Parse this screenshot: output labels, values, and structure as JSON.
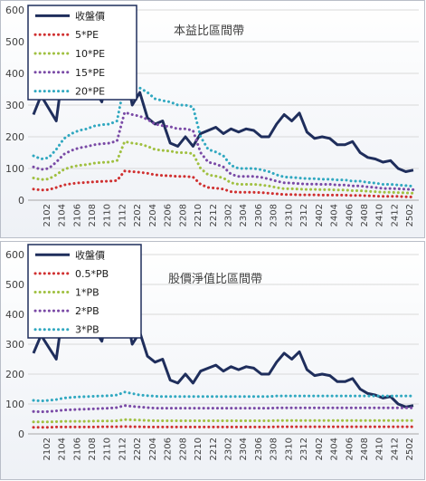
{
  "chart_data": [
    {
      "type": "line",
      "title": "本益比區間帶",
      "xlabel": "",
      "ylabel": "",
      "ylim": [
        0,
        600
      ],
      "yticks": [
        "0",
        "100",
        "200",
        "300",
        "400",
        "500",
        "600"
      ],
      "x_tick_labels": [
        "2102",
        "2104",
        "2106",
        "2108",
        "2110",
        "2112",
        "2202",
        "2204",
        "2206",
        "2208",
        "2210",
        "2212",
        "2302",
        "2304",
        "2306",
        "2308",
        "2310",
        "2312",
        "2402",
        "2404",
        "2406",
        "2408",
        "2410",
        "2412",
        "2502"
      ],
      "grid": true,
      "legend_position": "top-left",
      "series": [
        {
          "name": "收盤價",
          "color": "#1f2e5c",
          "style": "solid",
          "values": [
            270,
            330,
            290,
            250,
            430,
            420,
            385,
            400,
            350,
            310,
            430,
            450,
            430,
            300,
            340,
            260,
            240,
            250,
            180,
            170,
            200,
            170,
            210,
            220,
            230,
            210,
            225,
            215,
            225,
            220,
            200,
            200,
            240,
            270,
            250,
            275,
            215,
            195,
            200,
            195,
            175,
            175,
            185,
            150,
            135,
            130,
            120,
            125,
            100,
            90,
            95
          ]
        },
        {
          "name": "5*PE",
          "color": "#d03030",
          "style": "dotted",
          "values": [
            35,
            32,
            33,
            40,
            48,
            52,
            55,
            56,
            58,
            59,
            60,
            62,
            92,
            90,
            88,
            85,
            80,
            78,
            77,
            75,
            75,
            73,
            50,
            40,
            38,
            35,
            27,
            25,
            25,
            25,
            24,
            22,
            20,
            18,
            18,
            17,
            17,
            17,
            16,
            16,
            16,
            16,
            15,
            15,
            14,
            13,
            12,
            12,
            12,
            11,
            10
          ]
        },
        {
          "name": "10*PE",
          "color": "#a0c040",
          "style": "dotted",
          "values": [
            70,
            65,
            67,
            80,
            97,
            105,
            110,
            112,
            117,
            119,
            120,
            125,
            185,
            180,
            177,
            170,
            160,
            157,
            155,
            150,
            150,
            147,
            100,
            80,
            76,
            70,
            55,
            50,
            50,
            50,
            48,
            45,
            40,
            36,
            36,
            35,
            34,
            34,
            33,
            33,
            32,
            32,
            30,
            30,
            28,
            27,
            25,
            25,
            24,
            23,
            22
          ]
        },
        {
          "name": "15*PE",
          "color": "#7a4aa6",
          "style": "dotted",
          "values": [
            105,
            97,
            100,
            120,
            145,
            157,
            165,
            169,
            175,
            178,
            180,
            187,
            277,
            270,
            265,
            255,
            240,
            235,
            232,
            225,
            225,
            220,
            150,
            120,
            114,
            105,
            82,
            75,
            75,
            75,
            72,
            67,
            60,
            55,
            54,
            52,
            51,
            51,
            50,
            50,
            48,
            48,
            45,
            45,
            42,
            40,
            37,
            37,
            36,
            35,
            33
          ]
        },
        {
          "name": "20*PE",
          "color": "#30a8c0",
          "style": "dotted",
          "values": [
            140,
            130,
            134,
            160,
            194,
            210,
            220,
            225,
            234,
            238,
            240,
            250,
            370,
            360,
            354,
            340,
            320,
            314,
            310,
            300,
            300,
            294,
            200,
            160,
            152,
            140,
            110,
            100,
            100,
            100,
            96,
            90,
            80,
            73,
            72,
            70,
            68,
            68,
            66,
            66,
            64,
            64,
            60,
            60,
            56,
            54,
            50,
            50,
            48,
            46,
            44
          ]
        }
      ]
    },
    {
      "type": "line",
      "title": "股價淨值比區間帶",
      "xlabel": "",
      "ylabel": "",
      "ylim": [
        0,
        600
      ],
      "yticks": [
        "0",
        "100",
        "200",
        "300",
        "400",
        "500",
        "600"
      ],
      "x_tick_labels": [
        "2102",
        "2104",
        "2106",
        "2108",
        "2110",
        "2112",
        "2202",
        "2204",
        "2206",
        "2208",
        "2210",
        "2212",
        "2302",
        "2304",
        "2306",
        "2308",
        "2310",
        "2312",
        "2402",
        "2404",
        "2406",
        "2408",
        "2410",
        "2412",
        "2502"
      ],
      "grid": true,
      "legend_position": "top-left",
      "series": [
        {
          "name": "收盤價",
          "color": "#1f2e5c",
          "style": "solid",
          "values": [
            270,
            330,
            290,
            250,
            430,
            420,
            385,
            400,
            350,
            310,
            430,
            450,
            430,
            300,
            340,
            260,
            240,
            250,
            180,
            170,
            200,
            170,
            210,
            220,
            230,
            210,
            225,
            215,
            225,
            220,
            200,
            200,
            240,
            270,
            250,
            275,
            215,
            195,
            200,
            195,
            175,
            175,
            185,
            150,
            135,
            130,
            120,
            125,
            100,
            90,
            95
          ]
        },
        {
          "name": "0.5*PB",
          "color": "#d03030",
          "style": "dotted",
          "values": [
            22,
            22,
            22,
            23,
            23,
            23,
            23,
            23,
            23,
            24,
            24,
            24,
            25,
            24,
            24,
            23,
            23,
            23,
            23,
            23,
            23,
            23,
            23,
            23,
            23,
            23,
            23,
            23,
            23,
            23,
            23,
            23,
            24,
            24,
            24,
            24,
            24,
            24,
            24,
            24,
            24,
            24,
            24,
            24,
            24,
            24,
            24,
            24,
            24,
            24,
            24
          ]
        },
        {
          "name": "1*PB",
          "color": "#a0c040",
          "style": "dotted",
          "values": [
            40,
            40,
            40,
            41,
            42,
            42,
            42,
            42,
            43,
            43,
            43,
            44,
            48,
            47,
            46,
            45,
            44,
            44,
            44,
            44,
            44,
            44,
            44,
            44,
            44,
            44,
            44,
            44,
            44,
            44,
            44,
            44,
            45,
            45,
            45,
            45,
            45,
            45,
            45,
            45,
            45,
            45,
            45,
            45,
            45,
            45,
            45,
            45,
            45,
            45,
            45
          ]
        },
        {
          "name": "2*PB",
          "color": "#7a4aa6",
          "style": "dotted",
          "values": [
            75,
            74,
            75,
            77,
            80,
            81,
            82,
            83,
            84,
            85,
            86,
            88,
            95,
            92,
            90,
            88,
            86,
            86,
            86,
            86,
            86,
            86,
            86,
            86,
            86,
            86,
            86,
            86,
            86,
            86,
            86,
            86,
            87,
            87,
            87,
            87,
            87,
            87,
            87,
            87,
            87,
            87,
            87,
            87,
            87,
            87,
            87,
            87,
            87,
            87,
            87
          ]
        },
        {
          "name": "3*PB",
          "color": "#30a8c0",
          "style": "dotted",
          "values": [
            112,
            110,
            112,
            115,
            120,
            122,
            124,
            125,
            126,
            127,
            128,
            130,
            140,
            135,
            130,
            128,
            126,
            125,
            125,
            125,
            125,
            125,
            125,
            125,
            125,
            125,
            125,
            125,
            125,
            125,
            125,
            125,
            127,
            127,
            127,
            127,
            127,
            127,
            127,
            127,
            127,
            127,
            127,
            127,
            127,
            127,
            127,
            127,
            127,
            127,
            127
          ]
        }
      ]
    }
  ]
}
